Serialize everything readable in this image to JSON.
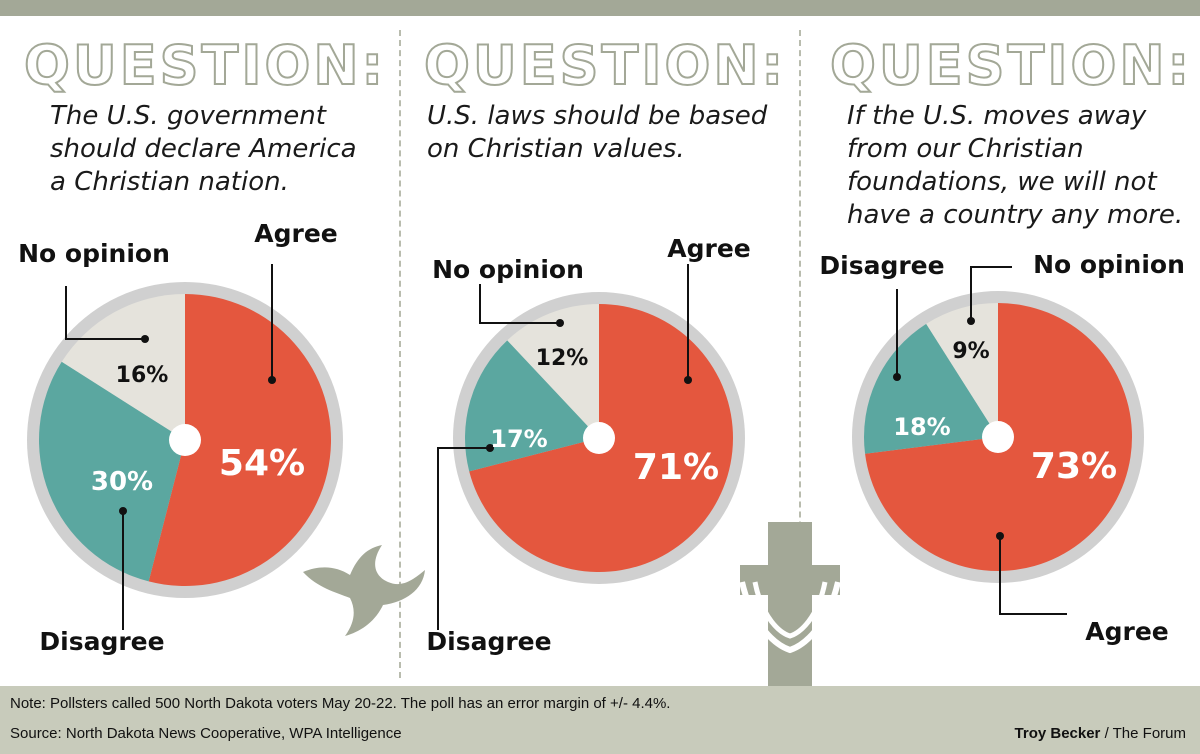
{
  "heading": "QUESTION:",
  "colors": {
    "agree": "#e4573e",
    "disagree": "#5ba7a0",
    "no_opinion": "#e5e3dc",
    "ring": "#d0d0d0",
    "accent": "#a3a897"
  },
  "questions": [
    {
      "text_lines": [
        "The U.S. government",
        "should declare America",
        "a Christian nation."
      ],
      "labels": {
        "agree": "Agree",
        "disagree": "Disagree",
        "no_opinion": "No opinion"
      },
      "pcts": {
        "agree": "54%",
        "disagree": "30%",
        "no_opinion": "16%"
      }
    },
    {
      "text_lines": [
        "U.S. laws should be based",
        "on Christian values."
      ],
      "labels": {
        "agree": "Agree",
        "disagree": "Disagree",
        "no_opinion": "No opinion"
      },
      "pcts": {
        "agree": "71%",
        "disagree": "17%",
        "no_opinion": "12%"
      }
    },
    {
      "text_lines": [
        "If the U.S. moves away",
        "from our Christian",
        "foundations, we will not",
        "have a country any more."
      ],
      "labels": {
        "agree": "Agree",
        "disagree": "Disagree",
        "no_opinion": "No opinion"
      },
      "pcts": {
        "agree": "73%",
        "disagree": "18%",
        "no_opinion": "9%"
      }
    }
  ],
  "chart_data": [
    {
      "type": "pie",
      "slices": [
        {
          "label": "Agree",
          "value": 54
        },
        {
          "label": "Disagree",
          "value": 30
        },
        {
          "label": "No opinion",
          "value": 16
        }
      ]
    },
    {
      "type": "pie",
      "slices": [
        {
          "label": "Agree",
          "value": 71
        },
        {
          "label": "Disagree",
          "value": 17
        },
        {
          "label": "No opinion",
          "value": 12
        }
      ]
    },
    {
      "type": "pie",
      "slices": [
        {
          "label": "Agree",
          "value": 73
        },
        {
          "label": "Disagree",
          "value": 18
        },
        {
          "label": "No opinion",
          "value": 9
        }
      ]
    }
  ],
  "footer": {
    "note": "Note: Pollsters called 500 North Dakota voters May 20-22. The poll has an error margin of +/- 4.4%.",
    "source": "Source: North Dakota News Cooperative, WPA Intelligence",
    "credit_name": "Troy Becker",
    "credit_org": " / The Forum"
  },
  "decorations": {
    "left": "dove-icon",
    "right": "cross-icon"
  }
}
